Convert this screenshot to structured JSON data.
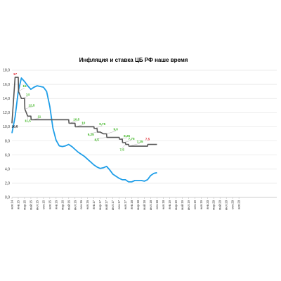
{
  "chart_data": {
    "type": "line",
    "title": "Инфляция и ставка ЦБ РФ наше время",
    "xlabel": "",
    "ylabel": "",
    "ylim": [
      0,
      18
    ],
    "yticks": [
      "0,0",
      "2,0",
      "4,0",
      "6,0",
      "8,0",
      "10,0",
      "12,0",
      "14,0",
      "16,0",
      "18,0"
    ],
    "grid": "horizontal",
    "legend": "none",
    "x_range": [
      0,
      84
    ],
    "x_ticks": [
      "ноя.14",
      "янв.15",
      "мар.15",
      "май.15",
      "июл.15",
      "сен.15",
      "ноя.15",
      "янв.16",
      "мар.16",
      "май.16",
      "июл.16",
      "сен.16",
      "ноя.16",
      "янв.17",
      "мар.17",
      "май.17",
      "июл.17",
      "сен.17",
      "ноя.17",
      "янв.18",
      "мар.18",
      "май.18",
      "июл.18",
      "сен.18",
      "ноя.18",
      "янв.19",
      "мар.19",
      "май.19",
      "июл.19",
      "сен.19",
      "ноя.19",
      "янв.20",
      "мар.20",
      "май.20",
      "июл.20",
      "сен.20",
      "ноя.20"
    ],
    "series": [
      {
        "name": "",
        "color": "#1f9ee8",
        "x": [
          0,
          1,
          2,
          3,
          4,
          5,
          6,
          7,
          8,
          9,
          10,
          11,
          12,
          13,
          14,
          15,
          16,
          17,
          18,
          19,
          20,
          21,
          22,
          23,
          24,
          25,
          26,
          27,
          28,
          29,
          30,
          31,
          32,
          33,
          34,
          35,
          36,
          37,
          38,
          39,
          40,
          41,
          42,
          43,
          44,
          45,
          46
        ],
        "values": [
          9.1,
          11.4,
          15.0,
          16.9,
          16.4,
          15.8,
          15.3,
          15.6,
          15.8,
          15.7,
          15.6,
          15.0,
          12.9,
          9.8,
          8.1,
          7.3,
          7.2,
          7.3,
          7.5,
          7.2,
          6.8,
          6.4,
          6.1,
          5.8,
          5.4,
          5.0,
          4.6,
          4.3,
          4.1,
          4.2,
          4.4,
          3.9,
          3.3,
          3.0,
          2.7,
          2.5,
          2.5,
          2.2,
          2.2,
          2.4,
          2.4,
          2.4,
          2.3,
          2.5,
          3.1,
          3.4,
          3.5
        ]
      },
      {
        "name": "",
        "color": "#555555",
        "x": [
          0,
          1,
          1.1,
          2,
          2.1,
          3,
          4,
          4.1,
          5,
          6,
          6.1,
          7,
          8,
          9,
          10,
          11,
          12,
          13,
          14,
          15,
          16,
          17,
          18,
          18.1,
          20,
          20.1,
          21,
          22,
          23,
          24,
          25,
          26,
          26.1,
          27,
          27.1,
          28,
          29,
          30,
          30.1,
          31,
          32,
          33,
          34,
          34.1,
          35,
          35.1,
          36,
          36.1,
          37,
          37.1,
          38,
          39,
          40,
          41,
          42,
          43,
          43.1,
          44,
          45,
          46
        ],
        "values": [
          10.5,
          17,
          17,
          17,
          15,
          14,
          14,
          12.5,
          11.5,
          11.5,
          11,
          11,
          11,
          11,
          11,
          11,
          11,
          11,
          11,
          11,
          11,
          11,
          11,
          10.5,
          10.5,
          10,
          10,
          10,
          10,
          10,
          10,
          10,
          9.75,
          9.75,
          9.25,
          9.25,
          9,
          9,
          8.5,
          8.5,
          8.5,
          8.5,
          8.5,
          8.25,
          8.25,
          7.75,
          7.75,
          7.5,
          7.5,
          7.25,
          7.25,
          7.25,
          7.25,
          7.25,
          7.25,
          7.25,
          7.5,
          7.5,
          7.5,
          7.5
        ]
      }
    ],
    "annotations": [
      {
        "text": "17",
        "x": 1,
        "y": 17,
        "color": "#e0202a"
      },
      {
        "text": "10,5",
        "x": 0,
        "y": 10.5,
        "color": "#000000"
      },
      {
        "text": "15",
        "x": 2,
        "y": 15,
        "color": "#3cb521"
      },
      {
        "text": "14",
        "x": 3,
        "y": 14,
        "color": "#3cb521"
      },
      {
        "text": "12,5",
        "x": 4,
        "y": 12.5,
        "color": "#3cb521"
      },
      {
        "text": "11,5",
        "x": 5,
        "y": 11.5,
        "color": "#3cb521"
      },
      {
        "text": "11",
        "x": 6,
        "y": 11,
        "color": "#3cb521"
      },
      {
        "text": "10,5",
        "x": 18,
        "y": 10.5,
        "color": "#3cb521"
      },
      {
        "text": "10",
        "x": 20,
        "y": 10,
        "color": "#3cb521"
      },
      {
        "text": "9,75",
        "x": 26,
        "y": 9.75,
        "color": "#3cb521"
      },
      {
        "text": "9,25",
        "x": 27,
        "y": 9.25,
        "color": "#3cb521"
      },
      {
        "text": "9,0",
        "x": 30,
        "y": 9.0,
        "color": "#3cb521"
      },
      {
        "text": "8,5",
        "x": 30,
        "y": 8.5,
        "color": "#3cb521"
      },
      {
        "text": "8,25",
        "x": 34,
        "y": 8.25,
        "color": "#3cb521"
      },
      {
        "text": "7,75",
        "x": 35,
        "y": 7.75,
        "color": "#3cb521"
      },
      {
        "text": "7,5",
        "x": 36,
        "y": 7.5,
        "color": "#3cb521"
      },
      {
        "text": "7,25",
        "x": 37,
        "y": 7.25,
        "color": "#3cb521"
      },
      {
        "text": "7,5",
        "x": 43,
        "y": 7.5,
        "color": "#e0202a"
      }
    ]
  }
}
